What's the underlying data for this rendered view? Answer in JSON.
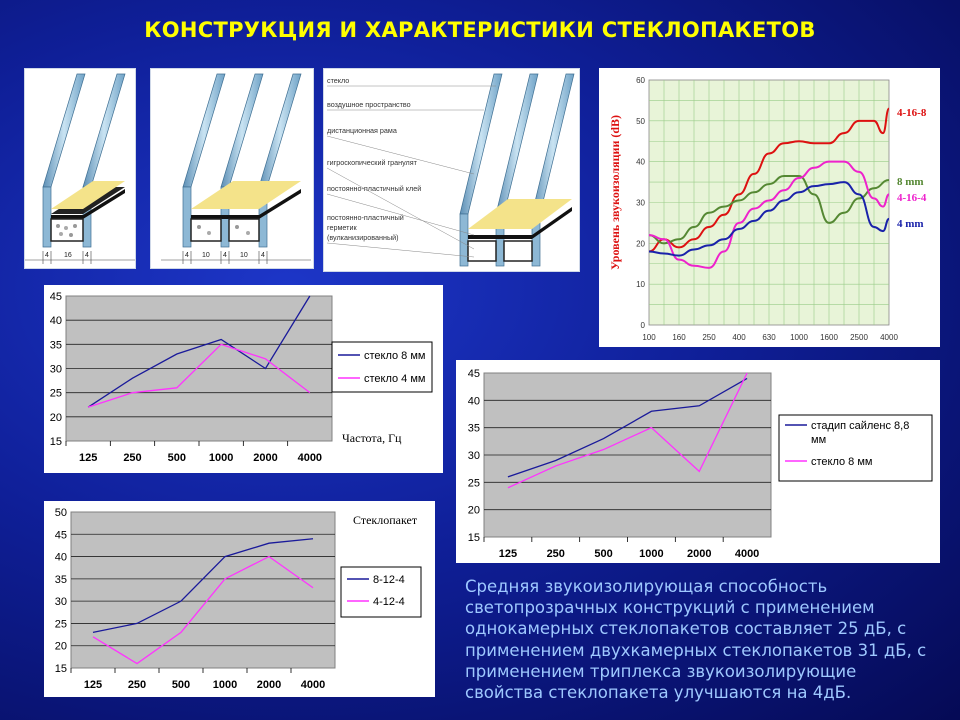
{
  "slide_title": "КОНСТРУКЦИЯ И ХАРАКТЕРИСТИКИ СТЕКЛОПАКЕТОВ",
  "diagram": {
    "dims_single": [
      "4",
      "16",
      "4"
    ],
    "dims_double": [
      "4",
      "10",
      "4",
      "10",
      "4"
    ],
    "labels": [
      "стекло",
      "воздушное пространство",
      "дистанционная рама",
      "гигроскопический гранулят",
      "постоянно-пластичный клей",
      "постоянно-пластичный",
      "герметик",
      "(вулканизированный)"
    ]
  },
  "chart_data": [
    {
      "id": "chart_glass",
      "type": "line",
      "categories": [
        "125",
        "250",
        "500",
        "1000",
        "2000",
        "4000"
      ],
      "xlabel": "Частота, Гц",
      "ylabel": "",
      "ylim": [
        15,
        45
      ],
      "yticks": [
        "15",
        "20",
        "25",
        "30",
        "35",
        "40",
        "45"
      ],
      "grid": true,
      "legend": "right",
      "series": [
        {
          "name": "стекло 8 мм",
          "color": "#1a1a9a",
          "values": [
            22,
            28,
            33,
            36,
            30,
            45
          ]
        },
        {
          "name": "стекло 4 мм",
          "color": "#ff33ff",
          "values": [
            22,
            25,
            26,
            35,
            32,
            25
          ]
        }
      ]
    },
    {
      "id": "chart_unit",
      "type": "line",
      "title": "Стеклопакет",
      "categories": [
        "125",
        "250",
        "500",
        "1000",
        "2000",
        "4000"
      ],
      "ylim": [
        15,
        50
      ],
      "yticks": [
        "15",
        "20",
        "25",
        "30",
        "35",
        "40",
        "45",
        "50"
      ],
      "grid": true,
      "legend": "right",
      "series": [
        {
          "name": "8-12-4",
          "color": "#1a1a9a",
          "values": [
            23,
            25,
            30,
            40,
            43,
            44
          ]
        },
        {
          "name": "4-12-4",
          "color": "#ff33ff",
          "values": [
            22,
            16,
            23,
            35,
            40,
            33
          ]
        }
      ]
    },
    {
      "id": "chart_silence",
      "type": "line",
      "categories": [
        "125",
        "250",
        "500",
        "1000",
        "2000",
        "4000"
      ],
      "ylim": [
        15,
        45
      ],
      "yticks": [
        "15",
        "20",
        "25",
        "30",
        "35",
        "40",
        "45"
      ],
      "grid": true,
      "legend": "right",
      "series": [
        {
          "name": "стадип сайленс 8,8 мм",
          "color": "#1a1a9a",
          "values": [
            26,
            29,
            33,
            38,
            39,
            44
          ]
        },
        {
          "name": "стекло 8 мм",
          "color": "#ff33ff",
          "values": [
            24,
            28,
            31,
            35,
            27,
            45
          ]
        }
      ]
    },
    {
      "id": "chart_db",
      "type": "line",
      "ylabel": "Уровень звукоизоляции (dB)",
      "categories": [
        "100",
        "160",
        "250",
        "400",
        "630",
        "1000",
        "1600",
        "2500",
        "4000"
      ],
      "ylim": [
        0,
        60
      ],
      "yticks": [
        "0",
        "10",
        "20",
        "30",
        "40",
        "50",
        "60"
      ],
      "grid": true,
      "legend": "right",
      "series": [
        {
          "name": "4-16-8",
          "color": "#dd1111",
          "x": [
            0,
            0.5,
            1,
            1.5,
            2,
            2.5,
            3,
            3.5,
            4,
            4.5,
            5,
            5.5,
            6,
            6.5,
            7,
            7.5,
            7.8,
            8
          ],
          "values": [
            18,
            21,
            19,
            21,
            24,
            27,
            32,
            37,
            42,
            44.5,
            45,
            44.5,
            44.5,
            47,
            50,
            50,
            47,
            53
          ]
        },
        {
          "name": "8 mm",
          "color": "#558833",
          "x": [
            0,
            0.5,
            1,
            1.5,
            2,
            2.5,
            3,
            3.5,
            4,
            4.5,
            5,
            5.5,
            6,
            6.5,
            7,
            7.5,
            8
          ],
          "values": [
            22,
            20,
            21,
            24,
            27.5,
            29,
            30.5,
            32.5,
            34.5,
            36.5,
            36.5,
            32,
            25,
            27.5,
            31,
            33.5,
            35.5
          ]
        },
        {
          "name": "4-16-4",
          "color": "#ee22cc",
          "x": [
            0,
            0.5,
            1,
            1.5,
            2,
            2.5,
            3,
            3.5,
            4,
            4.5,
            5,
            5.5,
            6,
            6.5,
            7,
            7.5,
            7.8,
            8
          ],
          "values": [
            22,
            21,
            16,
            14.5,
            14,
            18,
            25,
            28.5,
            30.5,
            33,
            36,
            38.5,
            40,
            40,
            37.5,
            31,
            29,
            32
          ]
        },
        {
          "name": "4 mm",
          "color": "#1a22aa",
          "x": [
            0,
            0.5,
            1,
            1.5,
            2,
            2.5,
            3,
            3.5,
            4,
            4.5,
            5,
            5.5,
            6,
            6.5,
            7,
            7.5,
            7.8,
            8
          ],
          "values": [
            18,
            17.5,
            17,
            18.5,
            19.5,
            21,
            23.5,
            25.5,
            28,
            30.5,
            32.5,
            34,
            34.5,
            35,
            32,
            24,
            23,
            26
          ]
        }
      ]
    }
  ],
  "body_text": "Средняя звукоизолирующая способность светопрозрачных конструкций с применением однокамерных стеклопакетов составляет 25 дБ, с применением двухкамерных стеклопакетов 31 дБ, с применением триплекса звукоизолирующие свойства стеклопакета улучшаются на 4дБ."
}
